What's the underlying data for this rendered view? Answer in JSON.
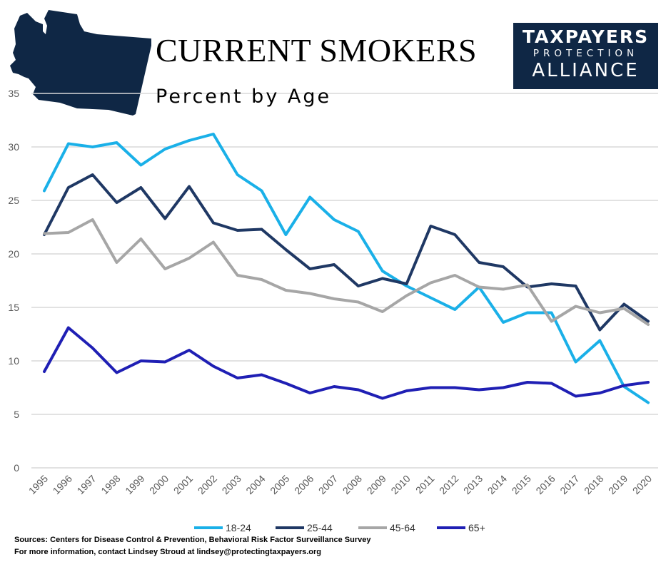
{
  "title": "CURRENT SMOKERS",
  "subtitle": "Percent by Age",
  "logo": {
    "line1": "TAXPAYERS",
    "line2": "PROTECTION",
    "line3": "ALLIANCE",
    "bg_color": "#0f2745"
  },
  "state_shape_icon": "washington-state-silhouette",
  "sources": {
    "line1": "Sources: Centers for Disease Control & Prevention, Behavioral Risk Factor Surveillance Survey",
    "line2": "For more information, contact Lindsey Stroud at lindsey@protectingtaxpayers.org"
  },
  "chart_data": {
    "type": "line",
    "title": "CURRENT SMOKERS",
    "subtitle": "Percent by Age",
    "xlabel": "",
    "ylabel": "",
    "ylim": [
      0,
      35
    ],
    "yticks": [
      0,
      5,
      10,
      15,
      20,
      25,
      30,
      35
    ],
    "grid": true,
    "legend_position": "bottom",
    "categories": [
      "1995",
      "1996",
      "1997",
      "1998",
      "1999",
      "2000",
      "2001",
      "2002",
      "2003",
      "2004",
      "2005",
      "2006",
      "2007",
      "2008",
      "2009",
      "2010",
      "2011",
      "2012",
      "2013",
      "2014",
      "2015",
      "2016",
      "2017",
      "2018",
      "2019",
      "2020"
    ],
    "series": [
      {
        "name": "18-24",
        "color": "#1ab0e8",
        "values": [
          25.9,
          30.3,
          30.0,
          30.4,
          28.3,
          29.8,
          30.6,
          31.2,
          27.4,
          25.9,
          21.8,
          25.3,
          23.2,
          22.1,
          18.4,
          17.0,
          15.9,
          14.8,
          16.9,
          13.6,
          14.5,
          14.5,
          9.9,
          11.9,
          7.6,
          6.1
        ]
      },
      {
        "name": "25-44",
        "color": "#1f3864",
        "values": [
          21.8,
          26.2,
          27.4,
          24.8,
          26.2,
          23.3,
          26.3,
          22.9,
          22.2,
          22.3,
          20.4,
          18.6,
          19.0,
          17.0,
          17.7,
          17.2,
          22.6,
          21.8,
          19.2,
          18.8,
          16.9,
          17.2,
          17.0,
          12.9,
          15.3,
          13.7
        ]
      },
      {
        "name": "45-64",
        "color": "#a6a6a6",
        "values": [
          21.9,
          22.0,
          23.2,
          19.2,
          21.4,
          18.6,
          19.6,
          21.1,
          18.0,
          17.6,
          16.6,
          16.3,
          15.8,
          15.5,
          14.6,
          16.1,
          17.3,
          18.0,
          16.9,
          16.7,
          17.1,
          13.7,
          15.1,
          14.5,
          14.9,
          13.4
        ]
      },
      {
        "name": "65+",
        "color": "#1f1fb4",
        "values": [
          9.0,
          13.1,
          11.2,
          8.9,
          10.0,
          9.9,
          11.0,
          9.5,
          8.4,
          8.7,
          7.9,
          7.0,
          7.6,
          7.3,
          6.5,
          7.2,
          7.5,
          7.5,
          7.3,
          7.5,
          8.0,
          7.9,
          6.7,
          7.0,
          7.7,
          8.0
        ]
      }
    ]
  }
}
